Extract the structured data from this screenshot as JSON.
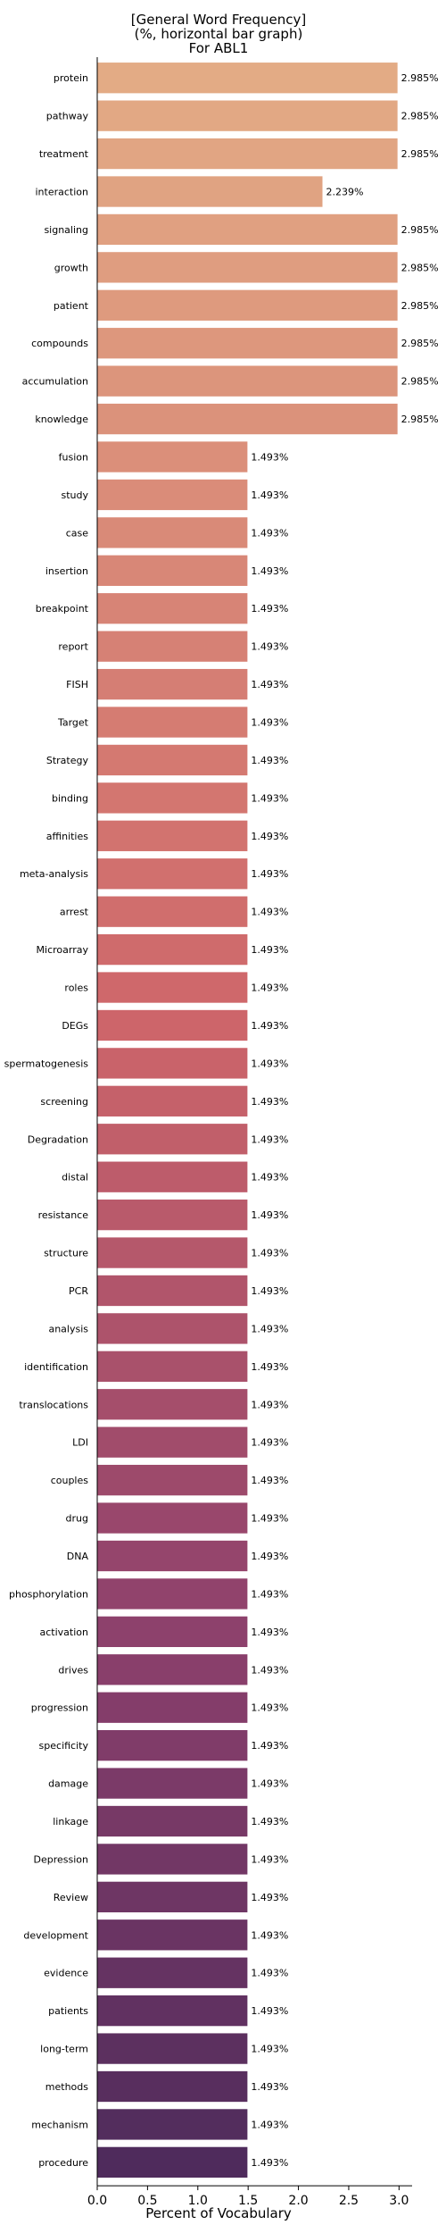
{
  "chart_data": {
    "type": "bar",
    "orientation": "horizontal",
    "title": [
      "[General Word Frequency]",
      "(%, horizontal bar graph)",
      "For ABL1"
    ],
    "xlabel": "Percent of Vocabulary",
    "ylabel": "",
    "xlim": [
      0,
      3.13
    ],
    "xticks": [
      0.0,
      0.5,
      1.0,
      1.5,
      2.0,
      2.5,
      3.0
    ],
    "xtick_labels": [
      "0.0",
      "0.5",
      "1.0",
      "1.5",
      "2.0",
      "2.5",
      "3.0"
    ],
    "grid": false,
    "legend": "none",
    "colormap": "flare",
    "color_start": "#e3ab85",
    "color_end": "#4f2b5c",
    "categories": [
      "protein",
      "pathway",
      "treatment",
      "interaction",
      "signaling",
      "growth",
      "patient",
      "compounds",
      "accumulation",
      "knowledge",
      "fusion",
      "study",
      "case",
      "insertion",
      "breakpoint",
      "report",
      "FISH",
      "Target",
      "Strategy",
      "binding",
      "affinities",
      "meta-analysis",
      "arrest",
      "Microarray",
      "roles",
      "DEGs",
      "spermatogenesis",
      "screening",
      "Degradation",
      "distal",
      "resistance",
      "structure",
      "PCR",
      "analysis",
      "identification",
      "translocations",
      "LDI",
      "couples",
      "drug",
      "DNA",
      "phosphorylation",
      "activation",
      "drives",
      "progression",
      "specificity",
      "damage",
      "linkage",
      "Depression",
      "Review",
      "development",
      "evidence",
      "patients",
      "long-term",
      "methods",
      "mechanism",
      "procedure"
    ],
    "values": [
      2.985,
      2.985,
      2.985,
      2.239,
      2.985,
      2.985,
      2.985,
      2.985,
      2.985,
      2.985,
      1.493,
      1.493,
      1.493,
      1.493,
      1.493,
      1.493,
      1.493,
      1.493,
      1.493,
      1.493,
      1.493,
      1.493,
      1.493,
      1.493,
      1.493,
      1.493,
      1.493,
      1.493,
      1.493,
      1.493,
      1.493,
      1.493,
      1.493,
      1.493,
      1.493,
      1.493,
      1.493,
      1.493,
      1.493,
      1.493,
      1.493,
      1.493,
      1.493,
      1.493,
      1.493,
      1.493,
      1.493,
      1.493,
      1.493,
      1.493,
      1.493,
      1.493,
      1.493,
      1.493,
      1.493,
      1.493
    ],
    "value_labels": [
      "2.985%",
      "2.985%",
      "2.985%",
      "2.239%",
      "2.985%",
      "2.985%",
      "2.985%",
      "2.985%",
      "2.985%",
      "2.985%",
      "1.493%",
      "1.493%",
      "1.493%",
      "1.493%",
      "1.493%",
      "1.493%",
      "1.493%",
      "1.493%",
      "1.493%",
      "1.493%",
      "1.493%",
      "1.493%",
      "1.493%",
      "1.493%",
      "1.493%",
      "1.493%",
      "1.493%",
      "1.493%",
      "1.493%",
      "1.493%",
      "1.493%",
      "1.493%",
      "1.493%",
      "1.493%",
      "1.493%",
      "1.493%",
      "1.493%",
      "1.493%",
      "1.493%",
      "1.493%",
      "1.493%",
      "1.493%",
      "1.493%",
      "1.493%",
      "1.493%",
      "1.493%",
      "1.493%",
      "1.493%",
      "1.493%",
      "1.493%",
      "1.493%",
      "1.493%",
      "1.493%",
      "1.493%",
      "1.493%",
      "1.493%"
    ]
  }
}
